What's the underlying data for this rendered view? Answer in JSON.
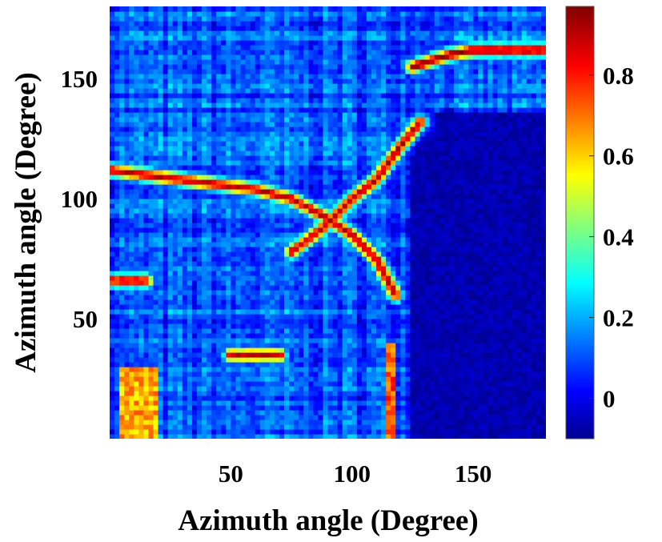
{
  "chart_data": {
    "type": "heatmap",
    "title": "",
    "xlabel": "Azimuth angle (Degree)",
    "ylabel": "Azimuth angle (Degree)",
    "xlim": [
      0,
      180
    ],
    "ylim": [
      0,
      180
    ],
    "x_ticks": [
      50,
      100,
      150
    ],
    "x_tick_labels": [
      "50",
      "100",
      "150"
    ],
    "y_ticks": [
      50,
      100,
      150
    ],
    "y_tick_labels": [
      "50",
      "100",
      "150"
    ],
    "colorbar": {
      "colormap": "jet",
      "range": [
        -0.1,
        0.97
      ],
      "ticks": [
        0,
        0.2,
        0.4,
        0.6,
        0.8
      ],
      "tick_labels": [
        "0",
        "0.2",
        "0.4",
        "0.6",
        "0.8"
      ]
    },
    "grid": false,
    "features": {
      "background_level": 0.12,
      "low_value_region": {
        "x_range": [
          125,
          180
        ],
        "y_range": [
          0,
          135
        ],
        "value": -0.05
      },
      "high_correlation_curves": [
        {
          "description": "diagonal arc",
          "points": [
            [
              0,
              112
            ],
            [
              30,
              108
            ],
            [
              60,
              104
            ],
            [
              75,
              100
            ],
            [
              88,
              93
            ],
            [
              100,
              85
            ],
            [
              110,
              75
            ],
            [
              118,
              60
            ]
          ],
          "value": 0.9
        },
        {
          "description": "diagonal arc",
          "points": [
            [
              75,
              78
            ],
            [
              88,
              88
            ],
            [
              100,
              100
            ],
            [
              110,
              108
            ],
            [
              120,
              122
            ],
            [
              128,
              132
            ]
          ],
          "value": 0.9
        },
        {
          "description": "upper right band",
          "points": [
            [
              125,
              155
            ],
            [
              140,
              160
            ],
            [
              150,
              162
            ],
            [
              180,
              162
            ]
          ],
          "value": 0.95
        },
        {
          "description": "horizontal band",
          "points": [
            [
              0,
              66
            ],
            [
              15,
              66
            ]
          ],
          "value": 0.9
        },
        {
          "description": "horizontal band",
          "points": [
            [
              50,
              35
            ],
            [
              70,
              35
            ]
          ],
          "value": 0.9
        }
      ],
      "high_columns": [
        {
          "x_range": [
            5,
            20
          ],
          "y_range": [
            0,
            30
          ],
          "value": 0.75
        },
        {
          "x_range": [
            114,
            118
          ],
          "y_range": [
            0,
            40
          ],
          "value": 0.85
        }
      ]
    }
  }
}
